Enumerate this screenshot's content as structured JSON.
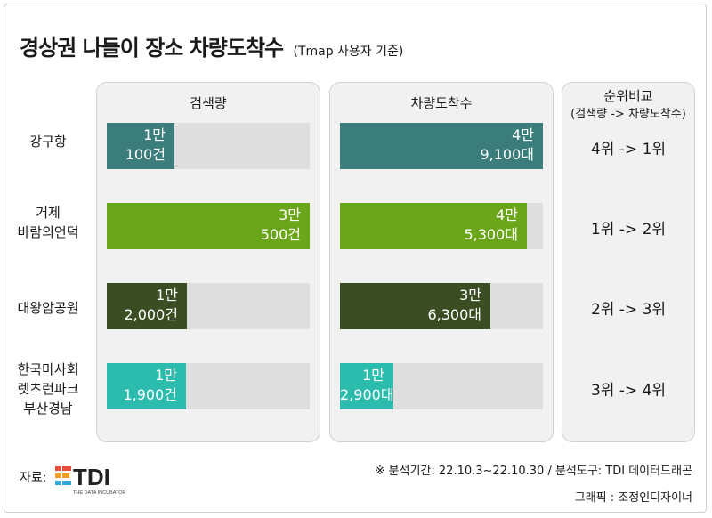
{
  "title": "경상권 나들이 장소 차량도착수",
  "subtitle": "(Tmap 사용자 기준)",
  "panels": {
    "search": "검색량",
    "arrivals": "차량도착수",
    "rank_title": "순위비교",
    "rank_sub": "(검색량 -> 차량도착수)"
  },
  "rows": [
    {
      "label1": "강구항",
      "label2": "",
      "label3": "",
      "search_l1": "1만",
      "search_l2": "100건",
      "arrive_l1": "4만",
      "arrive_l2": "9,100대",
      "rank": "4위 -> 1위"
    },
    {
      "label1": "거제",
      "label2": "바람의언덕",
      "label3": "",
      "search_l1": "3만",
      "search_l2": "500건",
      "arrive_l1": "4만",
      "arrive_l2": "5,300대",
      "rank": "1위 -> 2위"
    },
    {
      "label1": "대왕암공원",
      "label2": "",
      "label3": "",
      "search_l1": "1만",
      "search_l2": "2,000건",
      "arrive_l1": "3만",
      "arrive_l2": "6,300대",
      "rank": "2위 -> 3위"
    },
    {
      "label1": "한국마사회",
      "label2": "렛츠런파크",
      "label3": "부산경남",
      "search_l1": "1만",
      "search_l2": "1,900건",
      "arrive_l1": "1만",
      "arrive_l2": "2,900대",
      "rank": "3위 -> 4위"
    }
  ],
  "colors": [
    "#3a7d7a",
    "#6aa51a",
    "#3a4d23",
    "#2cbcae"
  ],
  "chart_data": {
    "type": "bar",
    "categories": [
      "강구항",
      "거제 바람의언덕",
      "대왕암공원",
      "한국마사회 렛츠런파크 부산경남"
    ],
    "series": [
      {
        "name": "검색량",
        "values": [
          10100,
          30500,
          12000,
          11900
        ]
      },
      {
        "name": "차량도착수",
        "values": [
          49100,
          45300,
          36300,
          12900
        ]
      }
    ],
    "xlim_search": [
      0,
      30500
    ],
    "xlim_arrivals": [
      0,
      49100
    ]
  },
  "footer": {
    "source_label": "자료:",
    "logo_text": "TDI",
    "logo_sub": "THE DATA INCUBATOR",
    "note": "※ 분석기간: 22.10.3~22.10.30 / 분석도구: TDI 데이터드래곤",
    "credit": "그래픽 : 조정인디자이너"
  }
}
